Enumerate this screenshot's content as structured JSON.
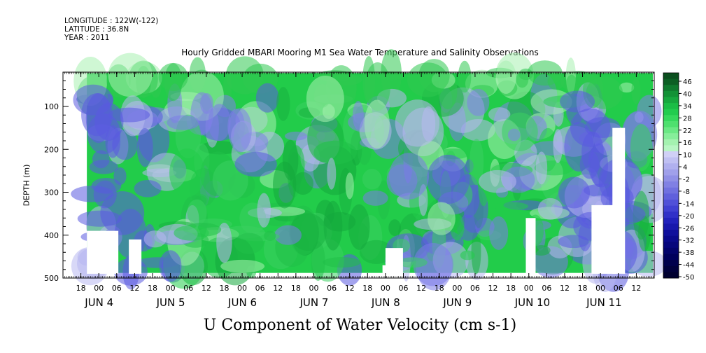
{
  "header": {
    "longitude": "LONGITUDE : 122W(-122)",
    "latitude": "LATITUDE : 36.8N",
    "year": "YEAR : 2011"
  },
  "plot_title": "Hourly Gridded MBARI Mooring M1 Sea Water Temperature and Salinity Observations",
  "bottom_title": "U Component of Water Velocity (cm s-1)",
  "colors": {
    "strong_positive": "#0a4a1a",
    "positive": "#22cc4a",
    "light_positive": "#a8f0b0",
    "light_negative": "#b8b8f0",
    "negative": "#5a5ae0",
    "strong_negative": "#00007a",
    "missing": "#ffffff"
  },
  "chart_data": {
    "type": "heatmap",
    "title": "Hourly Gridded MBARI Mooring M1 Sea Water Temperature and Salinity Observations",
    "xlabel": "",
    "ylabel": "DEPTH (m)",
    "ylim": [
      500,
      20
    ],
    "y_ticks": [
      100,
      200,
      300,
      400,
      500
    ],
    "hour_ticks": [
      "18",
      "00",
      "06",
      "12",
      "18",
      "00",
      "06",
      "12",
      "18",
      "00",
      "06",
      "12",
      "18",
      "00",
      "06",
      "12",
      "18",
      "00",
      "06",
      "12",
      "18",
      "00",
      "06",
      "12",
      "18",
      "00",
      "06",
      "12",
      "18",
      "00",
      "06",
      "12"
    ],
    "day_labels": [
      "JUN  4",
      "JUN  5",
      "JUN  6",
      "JUN  7",
      "JUN  8",
      "JUN  9",
      "JUN 10",
      "JUN 11"
    ],
    "x_range": [
      "2011-06-03T12:00",
      "2011-06-11T18:00"
    ],
    "data_start": "2011-06-03T20:00",
    "colorbar": {
      "labels": [
        "46",
        "40",
        "34",
        "28",
        "22",
        "16",
        "10",
        "4",
        "-2",
        "-8",
        "-14",
        "-20",
        "-26",
        "-32",
        "-38",
        "-44",
        "-50"
      ],
      "min": -50,
      "max": 50
    },
    "grid": false,
    "legend": "colorbar-right"
  }
}
